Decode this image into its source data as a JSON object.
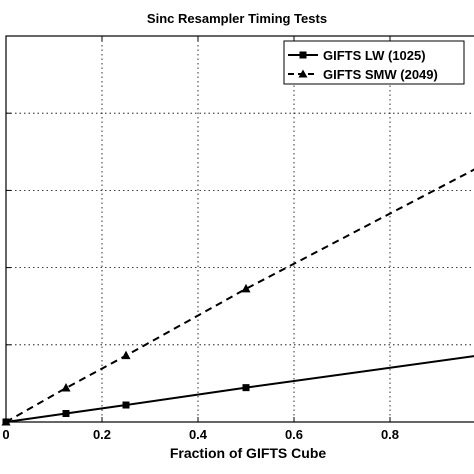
{
  "chart_data": {
    "type": "line",
    "title": "Sinc Resampler Timing Tests",
    "xlabel": "Fraction of GIFTS Cube",
    "ylabel": "",
    "xlim": [
      0,
      1
    ],
    "ylim": [
      0,
      1.0
    ],
    "xticks": [
      0,
      0.2,
      0.4,
      0.6,
      0.8
    ],
    "xtick_labels": [
      "0",
      "0.2",
      "0.4",
      "0.6",
      "0.8"
    ],
    "yticks": [
      0,
      0.2,
      0.4,
      0.6,
      0.8,
      1.0
    ],
    "grid": true,
    "legend_position": "top-right",
    "series": [
      {
        "name": "GIFTS LW (1025)",
        "line_style": "solid",
        "marker": "square",
        "color": "#000000",
        "x": [
          0,
          0.125,
          0.25,
          0.5
        ],
        "y": [
          0,
          0.022,
          0.044,
          0.089
        ],
        "line_end_y": 0.175
      },
      {
        "name": "GIFTS SMW (2049)",
        "line_style": "dashed",
        "marker": "triangle",
        "color": "#000000",
        "x": [
          0,
          0.125,
          0.25,
          0.5
        ],
        "y": [
          0,
          0.088,
          0.172,
          0.345
        ],
        "line_end_y": 0.67
      }
    ]
  }
}
